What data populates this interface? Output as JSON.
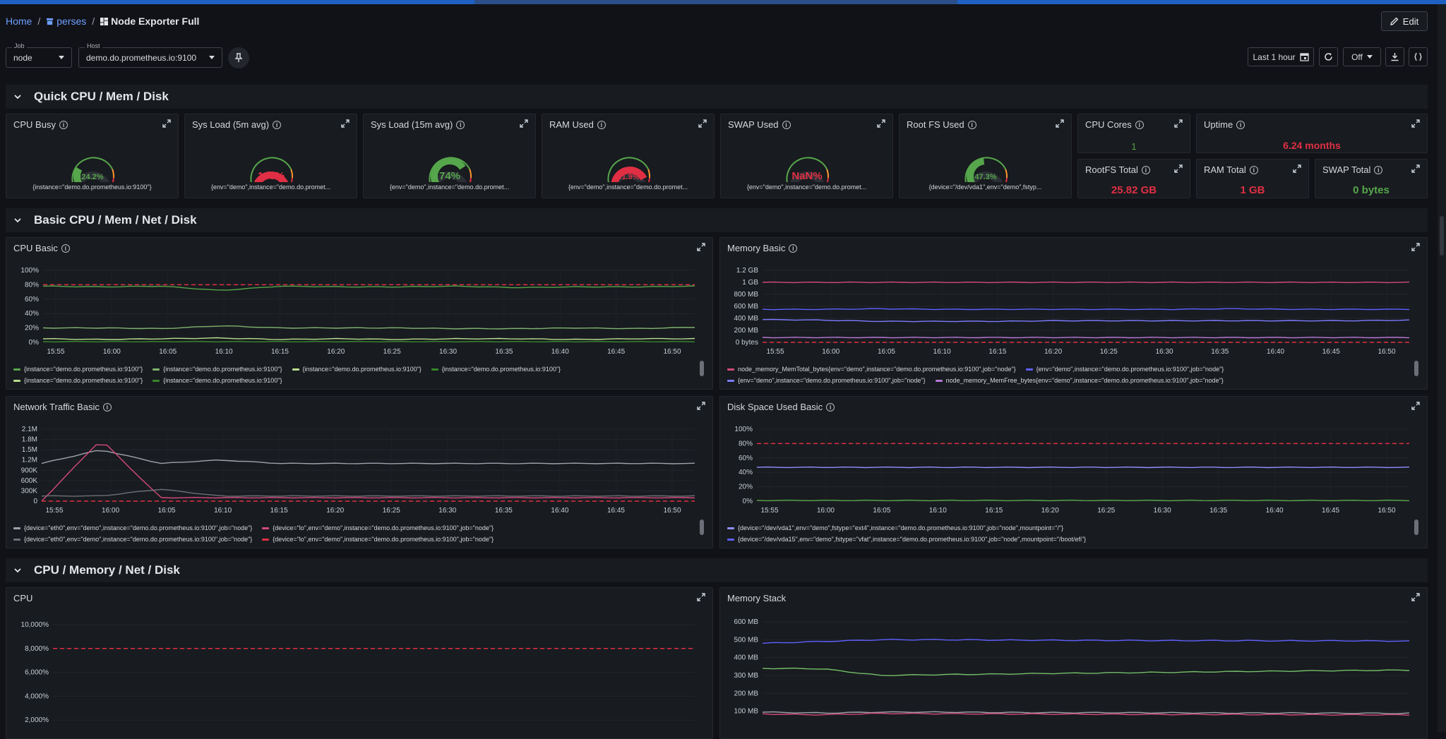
{
  "breadcrumb": {
    "home": "Home",
    "project": "perses",
    "dashboard": "Node Exporter Full"
  },
  "toolbar": {
    "edit_label": "Edit",
    "time_range": "Last 1 hour",
    "refresh": "Off"
  },
  "variables": {
    "job": {
      "label": "Job",
      "value": "node"
    },
    "host": {
      "label": "Host",
      "value": "demo.do.prometheus.io:9100"
    }
  },
  "colors": {
    "green": "#56a64b",
    "red": "#e02f44",
    "orange": "#ff9830",
    "blue": "#5f5fff",
    "purple": "#b877d9",
    "pink": "#d44a7a",
    "gray": "#8e8e95"
  },
  "rows": {
    "quick": "Quick CPU / Mem / Disk",
    "basic": "Basic CPU / Mem / Net / Disk",
    "full": "CPU / Memory / Net / Disk"
  },
  "quick": {
    "gauges": [
      {
        "title": "CPU Busy",
        "value": "24.2%",
        "pct": 24.2,
        "color": "#56a64b",
        "caption": "{instance=\"demo.do.prometheus.io:9100\"}"
      },
      {
        "title": "Sys Load (5m avg)",
        "value": "105%",
        "pct": 100,
        "color": "#e02f44",
        "caption": "{env=\"demo\",instance=\"demo.do.promet..."
      },
      {
        "title": "Sys Load (15m avg)",
        "value": "74%",
        "pct": 74,
        "color": "#56a64b",
        "caption": "{env=\"demo\",instance=\"demo.do.promet..."
      },
      {
        "title": "RAM Used",
        "value": "91.9%",
        "pct": 91.9,
        "color": "#e02f44",
        "caption": "{env=\"demo\",instance=\"demo.do.promet..."
      },
      {
        "title": "SWAP Used",
        "value": "NaN%",
        "pct": 0,
        "color": "#e02f44",
        "caption": "{env=\"demo\",instance=\"demo.do.promet..."
      },
      {
        "title": "Root FS Used",
        "value": "47.3%",
        "pct": 47.3,
        "color": "#56a64b",
        "caption": "{device=\"/dev/vda1\",env=\"demo\",fstyp..."
      }
    ],
    "stats": {
      "cpu_cores": {
        "title": "CPU Cores",
        "value": "1",
        "color": "#56a64b"
      },
      "uptime": {
        "title": "Uptime",
        "value": "6.24 months",
        "color": "#e02f44"
      },
      "rootfs_total": {
        "title": "RootFS Total",
        "value": "25.82 GB",
        "color": "#e02f44"
      },
      "ram_total": {
        "title": "RAM Total",
        "value": "1 GB",
        "color": "#e02f44"
      },
      "swap_total": {
        "title": "SWAP Total",
        "value": "0 bytes",
        "color": "#56a64b"
      }
    }
  },
  "time_ticks": [
    "15:55",
    "16:00",
    "16:05",
    "16:10",
    "16:15",
    "16:20",
    "16:25",
    "16:30",
    "16:35",
    "16:40",
    "16:45",
    "16:50"
  ],
  "panels": {
    "cpu_basic": {
      "title": "CPU Basic",
      "legend": [
        [
          "{instance=\"demo.do.prometheus.io:9100\"}",
          "{instance=\"demo.do.prometheus.io:9100\"}",
          "{instance=\"demo.do.prometheus.io:9100\"}",
          "{instance=\"demo.do.prometheus.io:9100\"}"
        ],
        [
          "{instance=\"demo.do.prometheus.io:9100\"}",
          "{instance=\"demo.do.prometheus.io:9100\"}"
        ]
      ]
    },
    "memory_basic": {
      "title": "Memory Basic",
      "legend": [
        [
          "node_memory_MemTotal_bytes{env=\"demo\",instance=\"demo.do.prometheus.io:9100\",job=\"node\"}",
          "{env=\"demo\",instance=\"demo.do.prometheus.io:9100\",job=\"node\"}"
        ],
        [
          "{env=\"demo\",instance=\"demo.do.prometheus.io:9100\",job=\"node\"}",
          "node_memory_MemFree_bytes{env=\"demo\",instance=\"demo.do.prometheus.io:9100\",job=\"node\"}"
        ]
      ]
    },
    "network_basic": {
      "title": "Network Traffic Basic",
      "legend": [
        [
          "{device=\"eth0\",env=\"demo\",instance=\"demo.do.prometheus.io:9100\",job=\"node\"}",
          "{device=\"lo\",env=\"demo\",instance=\"demo.do.prometheus.io:9100\",job=\"node\"}"
        ],
        [
          "{device=\"eth0\",env=\"demo\",instance=\"demo.do.prometheus.io:9100\",job=\"node\"}",
          "{device=\"lo\",env=\"demo\",instance=\"demo.do.prometheus.io:9100\",job=\"node\"}"
        ]
      ]
    },
    "disk_basic": {
      "title": "Disk Space Used Basic",
      "legend": [
        [
          "{device=\"/dev/vda1\",env=\"demo\",fstype=\"ext4\",instance=\"demo.do.prometheus.io:9100\",job=\"node\",mountpoint=\"/\"}"
        ],
        [
          "{device=\"/dev/vda15\",env=\"demo\",fstype=\"vfat\",instance=\"demo.do.prometheus.io:9100\",job=\"node\",mountpoint=\"/boot/efi\"}"
        ]
      ]
    },
    "cpu": {
      "title": "CPU"
    },
    "memory_stack": {
      "title": "Memory Stack"
    }
  },
  "chart_data": [
    {
      "type": "line",
      "title": "CPU Basic",
      "x": [
        "15:55",
        "16:00",
        "16:05",
        "16:10",
        "16:15",
        "16:20",
        "16:25",
        "16:30",
        "16:35",
        "16:40",
        "16:45",
        "16:50"
      ],
      "yticks": [
        "0%",
        "20%",
        "40%",
        "60%",
        "80%",
        "100%"
      ],
      "ylim": [
        0,
        100
      ],
      "series": [
        {
          "color": "#56a64b",
          "values": [
            78,
            77,
            78,
            72,
            78,
            77,
            77,
            78,
            76,
            77,
            77,
            78
          ]
        },
        {
          "color": "#7eb26d",
          "values": [
            20,
            20,
            19,
            23,
            20,
            20,
            20,
            19,
            19,
            20,
            19,
            21
          ]
        },
        {
          "color": "#b8dd8e",
          "values": [
            5,
            4,
            5,
            6,
            4,
            5,
            4,
            5,
            5,
            4,
            5,
            5
          ]
        },
        {
          "color": "#37872d",
          "values": [
            1,
            1,
            1,
            1,
            1,
            1,
            1,
            1,
            1,
            1,
            1,
            1
          ]
        }
      ],
      "threshold": {
        "value": 80,
        "color": "#e02f44"
      }
    },
    {
      "type": "line",
      "title": "Memory Basic",
      "x": [
        "15:55",
        "16:00",
        "16:05",
        "16:10",
        "16:15",
        "16:20",
        "16:25",
        "16:30",
        "16:35",
        "16:40",
        "16:45",
        "16:50"
      ],
      "yticks": [
        "0 bytes",
        "200 MB",
        "400 MB",
        "600 MB",
        "800 MB",
        "1 GB",
        "1.2 GB"
      ],
      "ylim": [
        0,
        1.2
      ],
      "series": [
        {
          "color": "#d44a7a",
          "values": [
            1,
            1,
            1,
            1,
            1,
            1,
            1,
            1,
            1,
            1,
            1,
            1
          ]
        },
        {
          "color": "#5f5fff",
          "values": [
            0.55,
            0.55,
            0.56,
            0.55,
            0.55,
            0.55,
            0.55,
            0.55,
            0.56,
            0.55,
            0.55,
            0.55
          ]
        },
        {
          "color": "#7b7bff",
          "values": [
            0.38,
            0.37,
            0.35,
            0.35,
            0.35,
            0.36,
            0.36,
            0.36,
            0.36,
            0.36,
            0.36,
            0.37
          ]
        },
        {
          "color": "#b877d9",
          "values": [
            0.08,
            0.08,
            0.08,
            0.08,
            0.08,
            0.08,
            0.08,
            0.08,
            0.08,
            0.08,
            0.08,
            0.08
          ]
        }
      ],
      "threshold": {
        "value": 0,
        "color": "#e02f44"
      }
    },
    {
      "type": "line",
      "title": "Network Traffic Basic",
      "x": [
        "15:55",
        "16:00",
        "16:05",
        "16:10",
        "16:15",
        "16:20",
        "16:25",
        "16:30",
        "16:35",
        "16:40",
        "16:45",
        "16:50"
      ],
      "yticks": [
        "0",
        "300K",
        "600K",
        "900K",
        "1.2M",
        "1.5M",
        "1.8M",
        "2.1M"
      ],
      "ylim": [
        0,
        2.1
      ],
      "series": [
        {
          "color": "#9fa3ad",
          "values": [
            1.1,
            1.5,
            1.1,
            1.2,
            1.1,
            1.1,
            1.1,
            1.1,
            1.1,
            1.1,
            1.1,
            1.1
          ]
        },
        {
          "color": "#d44a7a",
          "values": [
            0,
            1.8,
            0.1,
            0.1,
            0.1,
            0.1,
            0.1,
            0.1,
            0.1,
            0.1,
            0.1,
            0.1
          ]
        },
        {
          "color": "#6e7079",
          "values": [
            0.15,
            0.15,
            0.35,
            0.15,
            0.15,
            0.15,
            0.15,
            0.15,
            0.15,
            0.15,
            0.15,
            0.15
          ]
        }
      ],
      "threshold": {
        "value": 0,
        "color": "#e02f44"
      }
    },
    {
      "type": "line",
      "title": "Disk Space Used Basic",
      "x": [
        "15:55",
        "16:00",
        "16:05",
        "16:10",
        "16:15",
        "16:20",
        "16:25",
        "16:30",
        "16:35",
        "16:40",
        "16:45",
        "16:50"
      ],
      "yticks": [
        "0%",
        "20%",
        "40%",
        "60%",
        "80%",
        "100%"
      ],
      "ylim": [
        0,
        100
      ],
      "series": [
        {
          "color": "#8f8fff",
          "values": [
            47,
            47,
            47,
            47,
            47,
            47,
            47,
            47,
            47,
            47,
            47,
            47
          ]
        },
        {
          "color": "#56a64b",
          "values": [
            1,
            1,
            1,
            1,
            1,
            1,
            1,
            1,
            1,
            1,
            1,
            1
          ]
        }
      ],
      "threshold": {
        "value": 80,
        "color": "#e02f44"
      }
    },
    {
      "type": "line",
      "title": "CPU",
      "yticks": [
        "2,000%",
        "4,000%",
        "6,000%",
        "8,000%",
        "10,000%"
      ],
      "ylim": [
        0,
        10000
      ],
      "series": [],
      "threshold": {
        "value": 8000,
        "color": "#e02f44"
      }
    },
    {
      "type": "line",
      "title": "Memory Stack",
      "x": [
        "15:55",
        "16:00",
        "16:05",
        "16:10",
        "16:15",
        "16:20",
        "16:25",
        "16:30",
        "16:35",
        "16:40",
        "16:45",
        "16:50"
      ],
      "yticks": [
        "100 MB",
        "200 MB",
        "300 MB",
        "400 MB",
        "500 MB",
        "600 MB"
      ],
      "ylim": [
        0,
        600
      ],
      "series": [
        {
          "color": "#5f5fff",
          "values": [
            480,
            490,
            500,
            500,
            498,
            497,
            496,
            495,
            495,
            494,
            494,
            492
          ]
        },
        {
          "color": "#73bf69",
          "values": [
            340,
            338,
            300,
            305,
            308,
            312,
            315,
            318,
            322,
            325,
            328,
            330
          ]
        },
        {
          "color": "#9fa3ad",
          "values": [
            95,
            90,
            95,
            95,
            93,
            92,
            92,
            91,
            90,
            90,
            89,
            88
          ]
        },
        {
          "color": "#d44a7a",
          "values": [
            85,
            80,
            88,
            86,
            85,
            84,
            83,
            82,
            82,
            81,
            80,
            80
          ]
        }
      ]
    }
  ]
}
